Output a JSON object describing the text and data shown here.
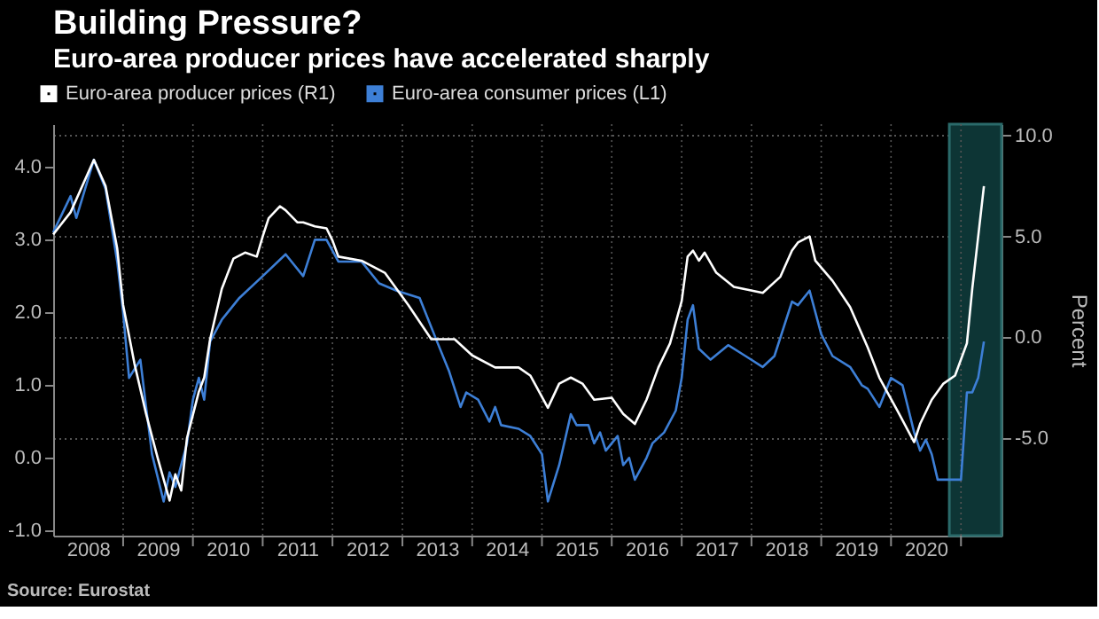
{
  "chart_data": {
    "type": "line",
    "title": "Building Pressure?",
    "subtitle": "Euro-area producer prices have accelerated sharply",
    "y2label": "Percent",
    "annotations": [
      "Source: Eurostat"
    ],
    "legend": "top left",
    "grid": true,
    "line_style": "solid",
    "marker": "none",
    "xlim": [
      "2008-01",
      "2021-08"
    ],
    "xticks": [
      {
        "value": "2008-07",
        "label": "2008"
      },
      {
        "value": "2009-07",
        "label": "2009"
      },
      {
        "value": "2010-07",
        "label": "2010"
      },
      {
        "value": "2011-07",
        "label": "2011"
      },
      {
        "value": "2012-07",
        "label": "2012"
      },
      {
        "value": "2013-07",
        "label": "2013"
      },
      {
        "value": "2014-07",
        "label": "2014"
      },
      {
        "value": "2015-07",
        "label": "2015"
      },
      {
        "value": "2016-07",
        "label": "2016"
      },
      {
        "value": "2017-07",
        "label": "2017"
      },
      {
        "value": "2018-07",
        "label": "2018"
      },
      {
        "value": "2019-07",
        "label": "2019"
      },
      {
        "value": "2020-07",
        "label": "2020"
      },
      {
        "value": "2009",
        "label": null
      },
      {
        "value": "2010",
        "label": null
      },
      {
        "value": "2011",
        "label": null
      },
      {
        "value": "2012",
        "label": null
      },
      {
        "value": "2013",
        "label": null
      },
      {
        "value": "2014",
        "label": null
      },
      {
        "value": "2015",
        "label": null
      },
      {
        "value": "2016",
        "label": null
      },
      {
        "value": "2017",
        "label": null
      },
      {
        "value": "2018",
        "label": null
      },
      {
        "value": "2019",
        "label": null
      },
      {
        "value": "2020",
        "label": null
      },
      {
        "value": "2021",
        "label": null
      }
    ],
    "ylim": [
      -1.07,
      4.59
    ],
    "yticks": [
      {
        "value": -1,
        "label": "-1.0"
      },
      {
        "value": 0,
        "label": "0.0"
      },
      {
        "value": 1,
        "label": "1.0"
      },
      {
        "value": 2,
        "label": "2.0"
      },
      {
        "value": 3,
        "label": "3.0"
      },
      {
        "value": 4,
        "label": "4.0"
      }
    ],
    "y2lim": [
      -9.84,
      10.57
    ],
    "y2ticks": [
      {
        "value": -5,
        "label": "-5.0"
      },
      {
        "value": 0,
        "label": "0.0"
      },
      {
        "value": 5,
        "label": "5.0"
      },
      {
        "value": 10,
        "label": "10.0"
      }
    ],
    "bands": [
      {
        "axis": "x",
        "from": "2020-11",
        "to": "2021-08",
        "color": "#0d3535"
      }
    ],
    "series": [
      {
        "name": "Euro-area producer prices (R1)",
        "color": "#ffffff",
        "axis": "y2",
        "x": [
          "2008-01",
          "2008-04",
          "2008-08",
          "2008-10",
          "2008-12",
          "2009-01",
          "2009-03",
          "2009-05",
          "2009-07",
          "2009-09",
          "2009-10",
          "2009-11",
          "2009-12",
          "2010-02",
          "2010-03",
          "2010-04",
          "2010-06",
          "2010-08",
          "2010-10",
          "2010-12",
          "2011-01",
          "2011-02",
          "2011-04",
          "2011-05",
          "2011-07",
          "2011-08",
          "2011-10",
          "2011-12",
          "2012-01",
          "2012-02",
          "2012-06",
          "2012-10",
          "2013-02",
          "2013-06",
          "2013-10",
          "2014-01",
          "2014-05",
          "2014-09",
          "2014-11",
          "2015-02",
          "2015-04",
          "2015-06",
          "2015-08",
          "2015-10",
          "2016-01",
          "2016-03",
          "2016-05",
          "2016-07",
          "2016-09",
          "2016-11",
          "2017-01",
          "2017-02",
          "2017-03",
          "2017-04",
          "2017-05",
          "2017-07",
          "2017-10",
          "2018-03",
          "2018-06",
          "2018-08",
          "2018-09",
          "2018-11",
          "2018-12",
          "2019-03",
          "2019-06",
          "2019-09",
          "2019-11",
          "2020-02",
          "2020-05",
          "2020-06",
          "2020-08",
          "2020-10",
          "2020-12",
          "2021-02",
          "2021-03",
          "2021-05"
        ],
        "values": [
          5.1,
          6.2,
          8.8,
          7.5,
          4.4,
          1.6,
          -1.3,
          -3.8,
          -6.0,
          -8.1,
          -6.8,
          -7.6,
          -5.0,
          -2.7,
          -2.0,
          -0.1,
          2.4,
          3.9,
          4.2,
          4.0,
          5.0,
          5.9,
          6.5,
          6.3,
          5.7,
          5.7,
          5.5,
          5.4,
          4.8,
          4.0,
          3.8,
          3.2,
          1.6,
          -0.1,
          -0.1,
          -0.9,
          -1.5,
          -1.5,
          -1.9,
          -3.5,
          -2.3,
          -2.0,
          -2.3,
          -3.1,
          -3.0,
          -3.8,
          -4.3,
          -3.1,
          -1.5,
          -0.3,
          1.8,
          4.0,
          4.3,
          3.8,
          4.2,
          3.2,
          2.5,
          2.2,
          3.0,
          4.3,
          4.7,
          5.0,
          3.8,
          2.8,
          1.5,
          -0.5,
          -2.0,
          -3.6,
          -5.2,
          -4.3,
          -3.1,
          -2.3,
          -1.9,
          -0.3,
          2.4,
          7.5
        ]
      },
      {
        "name": "Euro-area consumer prices  (L1)",
        "color": "#3d7fd6",
        "x": [
          "2008-01",
          "2008-04",
          "2008-05",
          "2008-08",
          "2008-10",
          "2008-12",
          "2009-01",
          "2009-02",
          "2009-04",
          "2009-05",
          "2009-06",
          "2009-08",
          "2009-09",
          "2009-10",
          "2009-12",
          "2010-01",
          "2010-02",
          "2010-03",
          "2010-04",
          "2010-06",
          "2010-09",
          "2011-01",
          "2011-05",
          "2011-08",
          "2011-10",
          "2011-12",
          "2012-02",
          "2012-04",
          "2012-06",
          "2012-09",
          "2012-12",
          "2013-04",
          "2013-07",
          "2013-09",
          "2013-11",
          "2013-12",
          "2014-02",
          "2014-04",
          "2014-05",
          "2014-06",
          "2014-09",
          "2014-11",
          "2015-01",
          "2015-02",
          "2015-04",
          "2015-06",
          "2015-07",
          "2015-09",
          "2015-10",
          "2015-11",
          "2015-12",
          "2016-02",
          "2016-03",
          "2016-04",
          "2016-05",
          "2016-07",
          "2016-08",
          "2016-10",
          "2016-12",
          "2017-01",
          "2017-02",
          "2017-03",
          "2017-04",
          "2017-06",
          "2017-09",
          "2017-12",
          "2018-03",
          "2018-05",
          "2018-08",
          "2018-09",
          "2018-11",
          "2019-01",
          "2019-03",
          "2019-06",
          "2019-08",
          "2019-09",
          "2019-11",
          "2020-01",
          "2020-03",
          "2020-05",
          "2020-06",
          "2020-07",
          "2020-08",
          "2020-09",
          "2021-01",
          "2021-02",
          "2021-03",
          "2021-04",
          "2021-05"
        ],
        "values": [
          3.1,
          3.6,
          3.3,
          4.1,
          3.7,
          2.7,
          2.0,
          1.1,
          1.35,
          0.7,
          0.05,
          -0.6,
          -0.2,
          -0.4,
          0.2,
          0.8,
          1.1,
          0.8,
          1.6,
          1.9,
          2.2,
          2.5,
          2.8,
          2.5,
          3.0,
          3.0,
          2.7,
          2.7,
          2.7,
          2.4,
          2.3,
          2.2,
          1.6,
          1.2,
          0.7,
          0.9,
          0.8,
          0.5,
          0.7,
          0.45,
          0.4,
          0.3,
          0.05,
          -0.6,
          -0.1,
          0.6,
          0.45,
          0.45,
          0.2,
          0.35,
          0.1,
          0.3,
          -0.1,
          0.0,
          -0.3,
          0.0,
          0.2,
          0.35,
          0.65,
          1.1,
          1.9,
          2.1,
          1.5,
          1.35,
          1.55,
          1.4,
          1.25,
          1.4,
          2.15,
          2.1,
          2.3,
          1.7,
          1.4,
          1.25,
          1.0,
          0.95,
          0.7,
          1.1,
          1.0,
          0.35,
          0.1,
          0.25,
          0.05,
          -0.3,
          -0.3,
          0.9,
          0.9,
          1.1,
          1.6
        ]
      }
    ]
  }
}
